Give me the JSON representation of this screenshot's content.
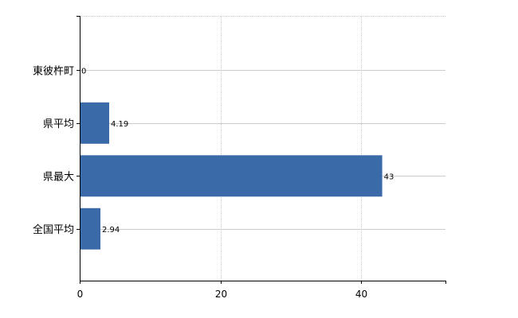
{
  "chart_data": {
    "type": "bar",
    "orientation": "horizontal",
    "categories": [
      "東彼杵町",
      "県平均",
      "県最大",
      "全国平均"
    ],
    "values": [
      0,
      4.19,
      43,
      2.94
    ],
    "value_labels": [
      "0",
      "4.19",
      "43",
      "2.94"
    ],
    "xlim": [
      0,
      52
    ],
    "xticks": [
      0,
      20,
      40
    ],
    "xtick_labels": [
      "0",
      "20",
      "40"
    ],
    "bar_color": "#3a6aa8",
    "grid": true
  }
}
